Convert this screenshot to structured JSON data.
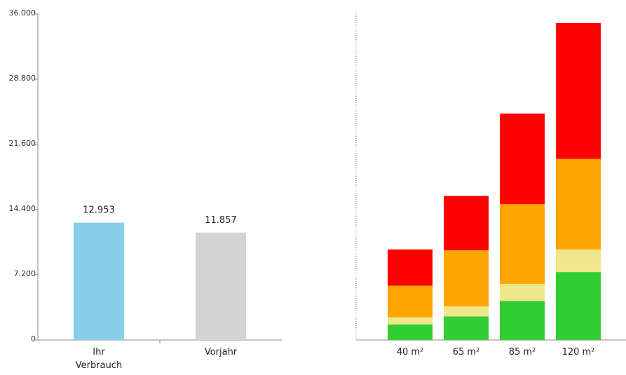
{
  "chart_data": [
    {
      "type": "bar",
      "categories": [
        "Ihr Verbrauch",
        "Vorjahr"
      ],
      "category_lines": [
        [
          "Ihr",
          "Verbrauch"
        ],
        [
          "Vorjahr"
        ]
      ],
      "values": [
        12953,
        11857
      ],
      "value_labels": [
        "12.953",
        "11.857"
      ],
      "colors": [
        "#87ceeb",
        "#d3d3d3"
      ],
      "ylim": [
        0,
        36000
      ],
      "yticks": [
        0,
        7200,
        14400,
        21600,
        28800,
        36000
      ],
      "ytick_labels": [
        "0",
        "7.200",
        "14.400",
        "21.600",
        "28.800",
        "36.000"
      ],
      "grid": false
    },
    {
      "type": "bar",
      "stacked": true,
      "categories": [
        "40 m²",
        "65 m²",
        "85 m²",
        "120 m²"
      ],
      "ylim": [
        0,
        36000
      ],
      "grid": false,
      "series": [
        {
          "color": "#32cd32",
          "values": [
            1700,
            2600,
            4300,
            7500
          ]
        },
        {
          "color": "#f0e68c",
          "values": [
            800,
            1100,
            1900,
            2500
          ]
        },
        {
          "color": "#ffa500",
          "values": [
            3500,
            6200,
            8800,
            10000
          ]
        },
        {
          "color": "#ff0000",
          "values": [
            4000,
            6000,
            10000,
            15000
          ]
        }
      ]
    }
  ]
}
